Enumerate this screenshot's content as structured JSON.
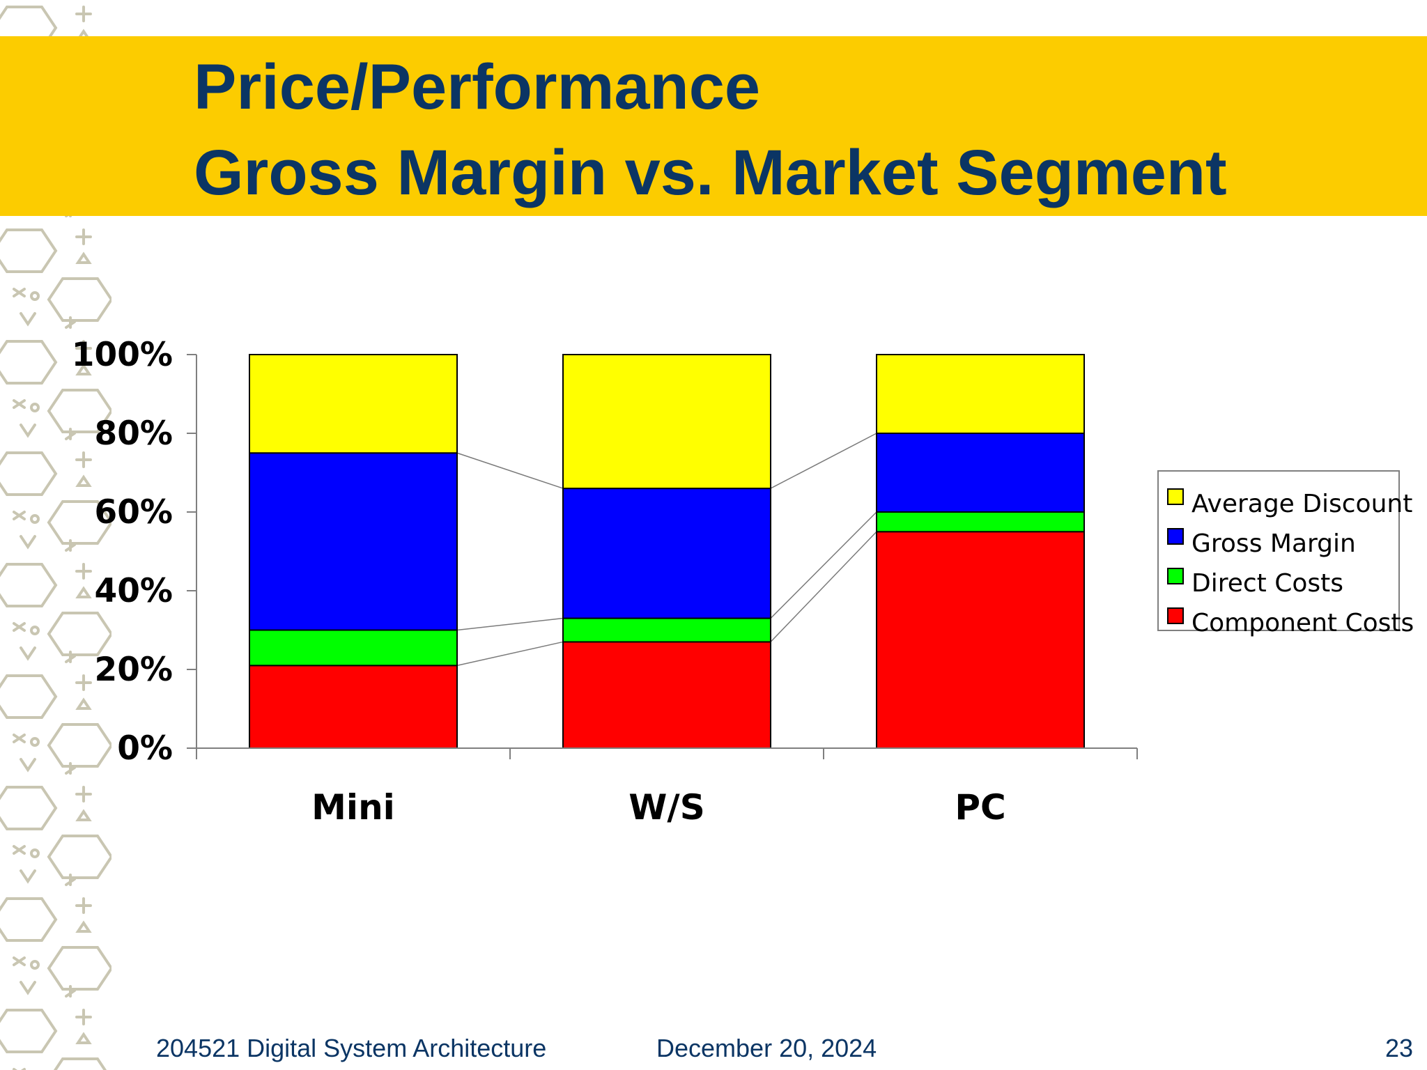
{
  "slide": {
    "title_line_1": "Price/Performance",
    "title_line_2": "Gross Margin vs. Market Segment",
    "banner_color": "#fccc00",
    "title_color": "#0b3564"
  },
  "footer": {
    "course": "204521 Digital System Architecture",
    "date": "December 20, 2024",
    "page": "23"
  },
  "chart_data": {
    "type": "bar",
    "stacked": true,
    "percent_stacked": true,
    "categories": [
      "Mini",
      "W/S",
      "PC"
    ],
    "series": [
      {
        "name": "Component Costs",
        "color": "#ff0000",
        "values": [
          21,
          27,
          55
        ]
      },
      {
        "name": "Direct Costs",
        "color": "#00ff00",
        "values": [
          9,
          6,
          5
        ]
      },
      {
        "name": "Gross Margin",
        "color": "#0000ff",
        "values": [
          45,
          33,
          20
        ]
      },
      {
        "name": "Average Discount",
        "color": "#ffff00",
        "values": [
          25,
          34,
          20
        ]
      }
    ],
    "y_ticks": [
      "0%",
      "20%",
      "40%",
      "60%",
      "80%",
      "100%"
    ],
    "ylim": [
      0,
      100
    ],
    "legend_order": [
      "Average Discount",
      "Gross Margin",
      "Direct Costs",
      "Component Costs"
    ],
    "legend_position": "right",
    "series_connector_lines": true,
    "grid": false
  }
}
